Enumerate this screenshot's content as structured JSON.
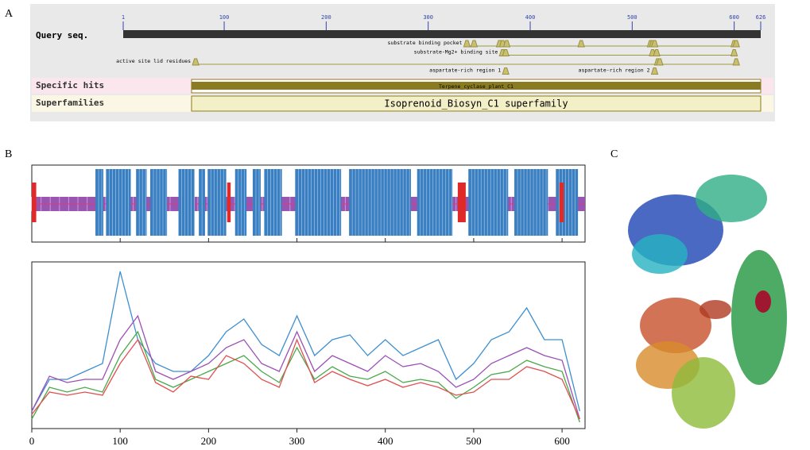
{
  "labels": {
    "a": "A",
    "b": "B",
    "c": "C"
  },
  "panel_a": {
    "query_label": "Query seq.",
    "range": [
      1,
      626
    ],
    "ticks": [
      1,
      100,
      200,
      300,
      400,
      500,
      600,
      626
    ],
    "features": [
      {
        "name": "substrate binding pocket",
        "sites": [
          338,
          345,
          370,
          373,
          377,
          450,
          518,
          520,
          522,
          600,
          602
        ]
      },
      {
        "name": "substrate-Mg2+ binding site",
        "sites": [
          373,
          376,
          520,
          524,
          600
        ]
      },
      {
        "name": "active site lid residues",
        "sites": [
          72,
          525,
          527,
          602
        ]
      },
      {
        "name": "aspartate-rich region 1",
        "sites": [
          376
        ]
      },
      {
        "name": "aspartate-rich region 2",
        "sites": [
          522
        ]
      }
    ],
    "specific_hits": {
      "label": "Specific hits",
      "name": "Terpene_cyclase_plant_C1",
      "range": [
        68,
        626
      ]
    },
    "superfamilies": {
      "label": "Superfamilies",
      "name": "Isoprenoid_Biosyn_C1 superfamily",
      "range": [
        68,
        626
      ]
    }
  },
  "chart_data": [
    {
      "type": "track",
      "xlim": [
        0,
        626
      ],
      "helices": [
        [
          72,
          81
        ],
        [
          84,
          112
        ],
        [
          118,
          130
        ],
        [
          134,
          153
        ],
        [
          166,
          184
        ],
        [
          189,
          196
        ],
        [
          199,
          220
        ],
        [
          230,
          243
        ],
        [
          250,
          259
        ],
        [
          263,
          283
        ],
        [
          298,
          350
        ],
        [
          359,
          429
        ],
        [
          436,
          476
        ],
        [
          494,
          539
        ],
        [
          546,
          584
        ],
        [
          593,
          618
        ]
      ],
      "strands": [
        [
          0,
          5
        ],
        [
          221,
          225
        ],
        [
          482,
          491
        ],
        [
          597,
          602
        ]
      ],
      "color": "#3a7fc1",
      "strand_color": "#e02a2a",
      "coil_color": "#9a55b0"
    },
    {
      "type": "line",
      "xlim": [
        0,
        626
      ],
      "ylim": [
        0,
        1
      ],
      "xticks": [
        0,
        100,
        200,
        300,
        400,
        500,
        600
      ],
      "x": [
        0,
        20,
        40,
        60,
        80,
        100,
        120,
        140,
        160,
        180,
        200,
        220,
        240,
        260,
        280,
        300,
        320,
        340,
        360,
        380,
        400,
        420,
        440,
        460,
        480,
        500,
        520,
        540,
        560,
        580,
        600,
        620
      ],
      "series": [
        {
          "color": "#3d8fd0",
          "values": [
            0.1,
            0.3,
            0.3,
            0.35,
            0.4,
            0.98,
            0.55,
            0.4,
            0.35,
            0.35,
            0.45,
            0.6,
            0.68,
            0.52,
            0.45,
            0.7,
            0.45,
            0.55,
            0.58,
            0.45,
            0.55,
            0.45,
            0.5,
            0.55,
            0.3,
            0.4,
            0.55,
            0.6,
            0.75,
            0.55,
            0.55,
            0.1
          ]
        },
        {
          "color": "#9b4fb5",
          "values": [
            0.1,
            0.32,
            0.28,
            0.3,
            0.3,
            0.55,
            0.7,
            0.35,
            0.3,
            0.35,
            0.4,
            0.5,
            0.55,
            0.4,
            0.35,
            0.6,
            0.35,
            0.45,
            0.4,
            0.35,
            0.45,
            0.38,
            0.4,
            0.35,
            0.25,
            0.3,
            0.4,
            0.45,
            0.5,
            0.45,
            0.42,
            0.05
          ]
        },
        {
          "color": "#4aa84a",
          "values": [
            0.05,
            0.25,
            0.22,
            0.25,
            0.22,
            0.45,
            0.6,
            0.3,
            0.25,
            0.3,
            0.35,
            0.4,
            0.45,
            0.35,
            0.28,
            0.5,
            0.3,
            0.38,
            0.32,
            0.3,
            0.35,
            0.28,
            0.3,
            0.28,
            0.18,
            0.25,
            0.33,
            0.35,
            0.42,
            0.38,
            0.35,
            0.03
          ]
        },
        {
          "color": "#e05050",
          "values": [
            0.08,
            0.22,
            0.2,
            0.22,
            0.2,
            0.4,
            0.55,
            0.28,
            0.22,
            0.32,
            0.3,
            0.45,
            0.4,
            0.3,
            0.25,
            0.55,
            0.28,
            0.35,
            0.3,
            0.26,
            0.3,
            0.25,
            0.28,
            0.25,
            0.2,
            0.22,
            0.3,
            0.3,
            0.38,
            0.35,
            0.3,
            0.05
          ]
        }
      ]
    }
  ]
}
